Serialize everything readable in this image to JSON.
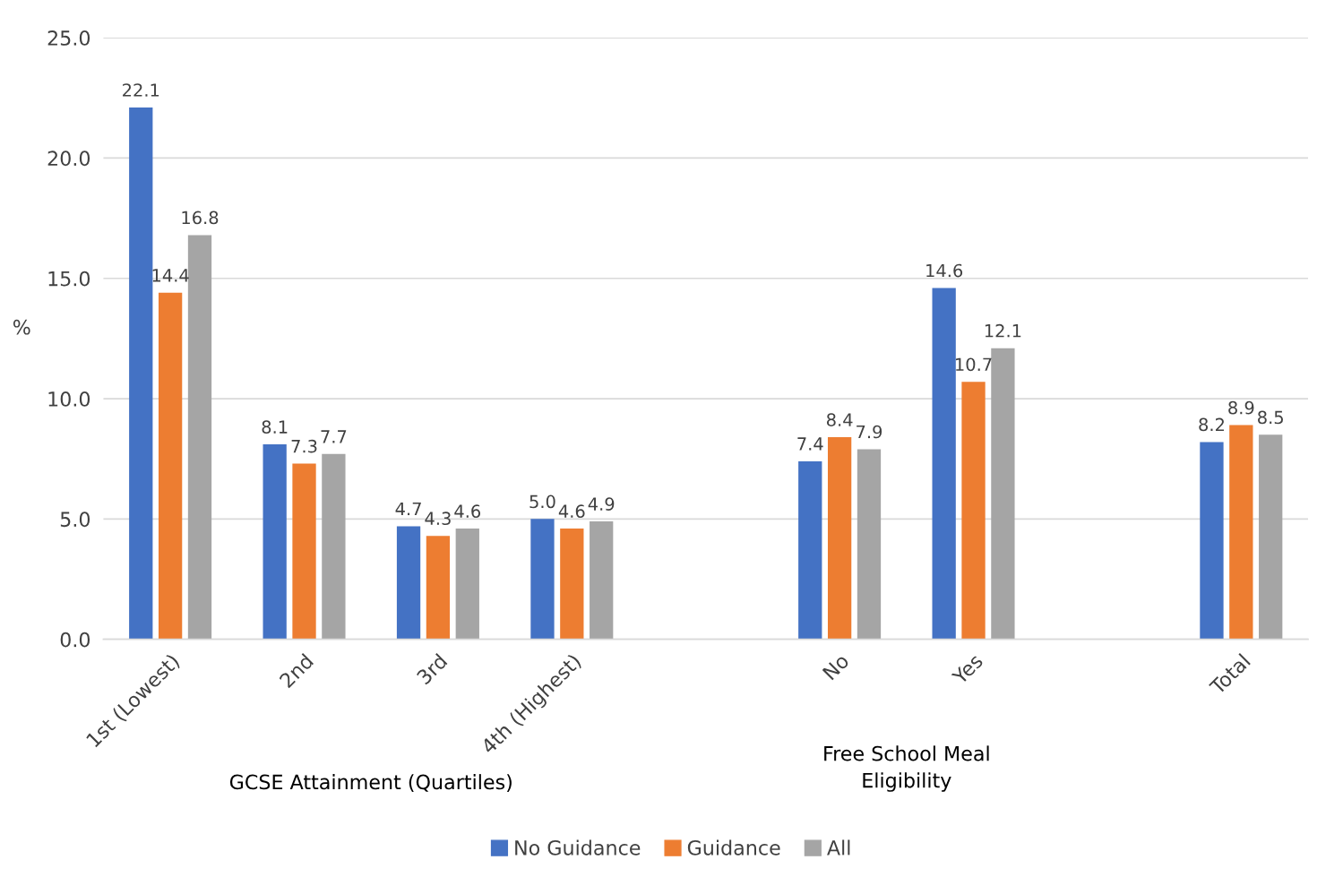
{
  "chart_data": {
    "type": "bar",
    "categories": [
      "1st (Lowest)",
      "2nd",
      "3rd",
      "4th (Highest)",
      null,
      "No",
      "Yes",
      null,
      "Total"
    ],
    "series": [
      {
        "name": "No Guidance",
        "color": "#4472c4",
        "values": [
          22.1,
          8.1,
          4.7,
          5.0,
          null,
          7.4,
          14.6,
          null,
          8.2
        ],
        "value_labels": [
          "22.1",
          "8.1",
          "4.7",
          "5.0",
          null,
          "7.4",
          "14.6",
          null,
          "8.2"
        ]
      },
      {
        "name": "Guidance",
        "color": "#ed7d31",
        "values": [
          14.4,
          7.3,
          4.3,
          4.6,
          null,
          8.4,
          10.7,
          null,
          8.9
        ],
        "value_labels": [
          "14.4",
          "7.3",
          "4.3",
          "4.6",
          null,
          "8.4",
          "10.7",
          null,
          "8.9"
        ]
      },
      {
        "name": "All",
        "color": "#a5a5a5",
        "values": [
          16.8,
          7.7,
          4.6,
          4.9,
          null,
          7.9,
          12.1,
          null,
          8.5
        ],
        "value_labels": [
          "16.8",
          "7.7",
          "4.6",
          "4.9",
          null,
          "7.9",
          "12.1",
          null,
          "8.5"
        ]
      }
    ],
    "ylabel": "%",
    "ylim": [
      0,
      25
    ],
    "yticks": [
      {
        "value": 0,
        "label": "0.0"
      },
      {
        "value": 5,
        "label": "5.0"
      },
      {
        "value": 10,
        "label": "10.0"
      },
      {
        "value": 15,
        "label": "15.0"
      },
      {
        "value": 20,
        "label": "20.0"
      },
      {
        "value": 25,
        "label": "25.0"
      }
    ],
    "annotations": [
      "GCSE Attainment (Quartiles)",
      "Free School Meal\nEligibility"
    ],
    "grid": "y",
    "legend": "bottom"
  }
}
